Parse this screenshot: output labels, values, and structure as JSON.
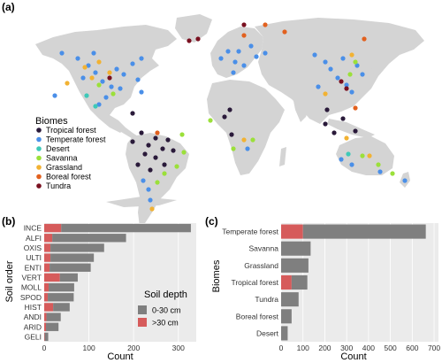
{
  "panels": {
    "a": "(a)",
    "b": "(b)",
    "c": "(c)"
  },
  "colors": {
    "Tropical forest": "#2a1a3a",
    "Temperate forest": "#4a8fe8",
    "Desert": "#3ec9b8",
    "Savanna": "#9be03a",
    "Grassland": "#f2b233",
    "Boreal forest": "#e2611f",
    "Tundra": "#7a1020",
    "depth_0_30": "#7f7f7f",
    "depth_gt_30": "#d65b5b",
    "land": "#d4d4d4",
    "panel_bg": "#ebebeb"
  },
  "map": {
    "legend_title": "Biomes",
    "legend": [
      "Tropical forest",
      "Temperate forest",
      "Desert",
      "Savanna",
      "Grassland",
      "Boreal forest",
      "Tundra"
    ]
  },
  "chart_data": [
    {
      "type": "bar",
      "orientation": "horizontal",
      "stacked": true,
      "panel": "(b)",
      "categories": [
        "INCE",
        "ALFI",
        "OXIS",
        "ULTI",
        "ENTI",
        "VERT",
        "MOLL",
        "SPOD",
        "HIST",
        "ANDI",
        "ARID",
        "GELI"
      ],
      "series": [
        {
          "name": "0-30 cm",
          "values": [
            290,
            165,
            120,
            97,
            92,
            40,
            57,
            58,
            37,
            32,
            28,
            8
          ]
        },
        {
          "name": ">30 cm",
          "values": [
            38,
            18,
            14,
            14,
            12,
            35,
            10,
            8,
            20,
            5,
            4,
            1
          ]
        }
      ],
      "xlabel": "Count",
      "ylabel": "Soil order",
      "xticks": [
        0,
        100,
        200,
        300
      ],
      "xlim": [
        0,
        340
      ],
      "legend_title": "Soil depth",
      "legend_position": "right"
    },
    {
      "type": "bar",
      "orientation": "horizontal",
      "stacked": true,
      "panel": "(c)",
      "categories": [
        "Temperate forest",
        "Savanna",
        "Grassland",
        "Tropical forest",
        "Tundra",
        "Boreal forest",
        "Desert"
      ],
      "series": [
        {
          "name": "0-30 cm",
          "values": [
            562,
            135,
            125,
            72,
            80,
            48,
            30
          ]
        },
        {
          "name": ">30 cm",
          "values": [
            100,
            0,
            0,
            48,
            0,
            0,
            0
          ]
        }
      ],
      "xlabel": "Count",
      "ylabel": "Biomes",
      "xticks": [
        0,
        100,
        200,
        300,
        400,
        500,
        600,
        700
      ],
      "xlim": [
        0,
        720
      ]
    }
  ]
}
